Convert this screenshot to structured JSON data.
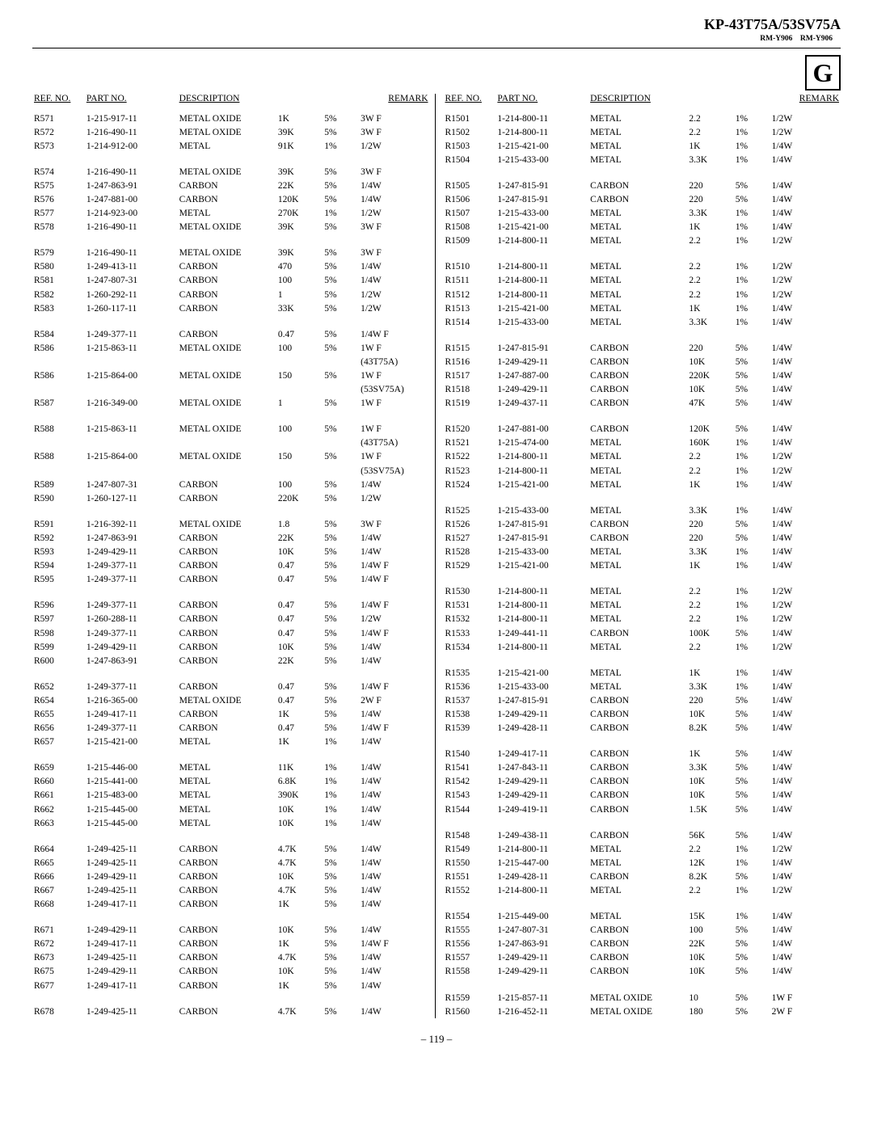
{
  "header": {
    "title": "KP-43T75A/53SV75A",
    "subtitle": "RM-Y906    RM-Y906",
    "letter": "G"
  },
  "colHeaders": [
    "REF. NO.",
    "PART NO.",
    "DESCRIPTION",
    "",
    "",
    "REMARK"
  ],
  "left": [
    [
      "R571",
      "1-215-917-11",
      "METAL OXIDE",
      "1K",
      "5%",
      "3W   F"
    ],
    [
      "R572",
      "1-216-490-11",
      "METAL OXIDE",
      "39K",
      "5%",
      "3W   F"
    ],
    [
      "R573",
      "1-214-912-00",
      "METAL",
      "91K",
      "1%",
      "1/2W"
    ],
    [],
    [
      "R574",
      "1-216-490-11",
      "METAL OXIDE",
      "39K",
      "5%",
      "3W   F"
    ],
    [
      "R575",
      "1-247-863-91",
      "CARBON",
      "22K",
      "5%",
      "1/4W"
    ],
    [
      "R576",
      "1-247-881-00",
      "CARBON",
      "120K",
      "5%",
      "1/4W"
    ],
    [
      "R577",
      "1-214-923-00",
      "METAL",
      "270K",
      "1%",
      "1/2W"
    ],
    [
      "R578",
      "1-216-490-11",
      "METAL OXIDE",
      "39K",
      "5%",
      "3W   F"
    ],
    [],
    [
      "R579",
      "1-216-490-11",
      "METAL OXIDE",
      "39K",
      "5%",
      "3W   F"
    ],
    [
      "R580",
      "1-249-413-11",
      "CARBON",
      "470",
      "5%",
      "1/4W"
    ],
    [
      "R581",
      "1-247-807-31",
      "CARBON",
      "100",
      "5%",
      "1/4W"
    ],
    [
      "R582",
      "1-260-292-11",
      "CARBON",
      "1",
      "5%",
      "1/2W"
    ],
    [
      "R583",
      "1-260-117-11",
      "CARBON",
      "33K",
      "5%",
      "1/2W"
    ],
    [],
    [
      "R584",
      "1-249-377-11",
      "CARBON",
      "0.47",
      "5%",
      "1/4W F"
    ],
    [
      "R586",
      "1-215-863-11",
      "METAL OXIDE",
      "100",
      "5%",
      "1W   F"
    ],
    [
      "",
      "",
      "",
      "",
      "",
      "(43T75A)"
    ],
    [
      "R586",
      "1-215-864-00",
      "METAL OXIDE",
      "150",
      "5%",
      "1W   F"
    ],
    [
      "",
      "",
      "",
      "",
      "",
      "(53SV75A)"
    ],
    [
      "R587",
      "1-216-349-00",
      "METAL OXIDE",
      "1",
      "5%",
      "1W   F"
    ],
    [],
    [
      "R588",
      "1-215-863-11",
      "METAL OXIDE",
      "100",
      "5%",
      "1W   F"
    ],
    [
      "",
      "",
      "",
      "",
      "",
      "(43T75A)"
    ],
    [
      "R588",
      "1-215-864-00",
      "METAL OXIDE",
      "150",
      "5%",
      "1W   F"
    ],
    [
      "",
      "",
      "",
      "",
      "",
      "(53SV75A)"
    ],
    [
      "R589",
      "1-247-807-31",
      "CARBON",
      "100",
      "5%",
      "1/4W"
    ],
    [
      "R590",
      "1-260-127-11",
      "CARBON",
      "220K",
      "5%",
      "1/2W"
    ],
    [],
    [
      "R591",
      "1-216-392-11",
      "METAL OXIDE",
      "1.8",
      "5%",
      "3W   F"
    ],
    [
      "R592",
      "1-247-863-91",
      "CARBON",
      "22K",
      "5%",
      "1/4W"
    ],
    [
      "R593",
      "1-249-429-11",
      "CARBON",
      "10K",
      "5%",
      "1/4W"
    ],
    [
      "R594",
      "1-249-377-11",
      "CARBON",
      "0.47",
      "5%",
      "1/4W F"
    ],
    [
      "R595",
      "1-249-377-11",
      "CARBON",
      "0.47",
      "5%",
      "1/4W F"
    ],
    [],
    [
      "R596",
      "1-249-377-11",
      "CARBON",
      "0.47",
      "5%",
      "1/4W F"
    ],
    [
      "R597",
      "1-260-288-11",
      "CARBON",
      "0.47",
      "5%",
      "1/2W"
    ],
    [
      "R598",
      "1-249-377-11",
      "CARBON",
      "0.47",
      "5%",
      "1/4W F"
    ],
    [
      "R599",
      "1-249-429-11",
      "CARBON",
      "10K",
      "5%",
      "1/4W"
    ],
    [
      "R600",
      "1-247-863-91",
      "CARBON",
      "22K",
      "5%",
      "1/4W"
    ],
    [],
    [
      "R652",
      "1-249-377-11",
      "CARBON",
      "0.47",
      "5%",
      "1/4W F"
    ],
    [
      "R654",
      "1-216-365-00",
      "METAL OXIDE",
      "0.47",
      "5%",
      "2W   F"
    ],
    [
      "R655",
      "1-249-417-11",
      "CARBON",
      "1K",
      "5%",
      "1/4W"
    ],
    [
      "R656",
      "1-249-377-11",
      "CARBON",
      "0.47",
      "5%",
      "1/4W F"
    ],
    [
      "R657",
      "1-215-421-00",
      "METAL",
      "1K",
      "1%",
      "1/4W"
    ],
    [],
    [
      "R659",
      "1-215-446-00",
      "METAL",
      "11K",
      "1%",
      "1/4W"
    ],
    [
      "R660",
      "1-215-441-00",
      "METAL",
      "6.8K",
      "1%",
      "1/4W"
    ],
    [
      "R661",
      "1-215-483-00",
      "METAL",
      "390K",
      "1%",
      "1/4W"
    ],
    [
      "R662",
      "1-215-445-00",
      "METAL",
      "10K",
      "1%",
      "1/4W"
    ],
    [
      "R663",
      "1-215-445-00",
      "METAL",
      "10K",
      "1%",
      "1/4W"
    ],
    [],
    [
      "R664",
      "1-249-425-11",
      "CARBON",
      "4.7K",
      "5%",
      "1/4W"
    ],
    [
      "R665",
      "1-249-425-11",
      "CARBON",
      "4.7K",
      "5%",
      "1/4W"
    ],
    [
      "R666",
      "1-249-429-11",
      "CARBON",
      "10K",
      "5%",
      "1/4W"
    ],
    [
      "R667",
      "1-249-425-11",
      "CARBON",
      "4.7K",
      "5%",
      "1/4W"
    ],
    [
      "R668",
      "1-249-417-11",
      "CARBON",
      "1K",
      "5%",
      "1/4W"
    ],
    [],
    [
      "R671",
      "1-249-429-11",
      "CARBON",
      "10K",
      "5%",
      "1/4W"
    ],
    [
      "R672",
      "1-249-417-11",
      "CARBON",
      "1K",
      "5%",
      "1/4W F"
    ],
    [
      "R673",
      "1-249-425-11",
      "CARBON",
      "4.7K",
      "5%",
      "1/4W"
    ],
    [
      "R675",
      "1-249-429-11",
      "CARBON",
      "10K",
      "5%",
      "1/4W"
    ],
    [
      "R677",
      "1-249-417-11",
      "CARBON",
      "1K",
      "5%",
      "1/4W"
    ],
    [],
    [
      "R678",
      "1-249-425-11",
      "CARBON",
      "4.7K",
      "5%",
      "1/4W"
    ]
  ],
  "right": [
    [
      "R1501",
      "1-214-800-11",
      "METAL",
      "2.2",
      "1%",
      "1/2W"
    ],
    [
      "R1502",
      "1-214-800-11",
      "METAL",
      "2.2",
      "1%",
      "1/2W"
    ],
    [
      "R1503",
      "1-215-421-00",
      "METAL",
      "1K",
      "1%",
      "1/4W"
    ],
    [
      "R1504",
      "1-215-433-00",
      "METAL",
      "3.3K",
      "1%",
      "1/4W"
    ],
    [],
    [
      "R1505",
      "1-247-815-91",
      "CARBON",
      "220",
      "5%",
      "1/4W"
    ],
    [
      "R1506",
      "1-247-815-91",
      "CARBON",
      "220",
      "5%",
      "1/4W"
    ],
    [
      "R1507",
      "1-215-433-00",
      "METAL",
      "3.3K",
      "1%",
      "1/4W"
    ],
    [
      "R1508",
      "1-215-421-00",
      "METAL",
      "1K",
      "1%",
      "1/4W"
    ],
    [
      "R1509",
      "1-214-800-11",
      "METAL",
      "2.2",
      "1%",
      "1/2W"
    ],
    [],
    [
      "R1510",
      "1-214-800-11",
      "METAL",
      "2.2",
      "1%",
      "1/2W"
    ],
    [
      "R1511",
      "1-214-800-11",
      "METAL",
      "2.2",
      "1%",
      "1/2W"
    ],
    [
      "R1512",
      "1-214-800-11",
      "METAL",
      "2.2",
      "1%",
      "1/2W"
    ],
    [
      "R1513",
      "1-215-421-00",
      "METAL",
      "1K",
      "1%",
      "1/4W"
    ],
    [
      "R1514",
      "1-215-433-00",
      "METAL",
      "3.3K",
      "1%",
      "1/4W"
    ],
    [],
    [
      "R1515",
      "1-247-815-91",
      "CARBON",
      "220",
      "5%",
      "1/4W"
    ],
    [
      "R1516",
      "1-249-429-11",
      "CARBON",
      "10K",
      "5%",
      "1/4W"
    ],
    [
      "R1517",
      "1-247-887-00",
      "CARBON",
      "220K",
      "5%",
      "1/4W"
    ],
    [
      "R1518",
      "1-249-429-11",
      "CARBON",
      "10K",
      "5%",
      "1/4W"
    ],
    [
      "R1519",
      "1-249-437-11",
      "CARBON",
      "47K",
      "5%",
      "1/4W"
    ],
    [],
    [
      "R1520",
      "1-247-881-00",
      "CARBON",
      "120K",
      "5%",
      "1/4W"
    ],
    [
      "R1521",
      "1-215-474-00",
      "METAL",
      "160K",
      "1%",
      "1/4W"
    ],
    [
      "R1522",
      "1-214-800-11",
      "METAL",
      "2.2",
      "1%",
      "1/2W"
    ],
    [
      "R1523",
      "1-214-800-11",
      "METAL",
      "2.2",
      "1%",
      "1/2W"
    ],
    [
      "R1524",
      "1-215-421-00",
      "METAL",
      "1K",
      "1%",
      "1/4W"
    ],
    [],
    [
      "R1525",
      "1-215-433-00",
      "METAL",
      "3.3K",
      "1%",
      "1/4W"
    ],
    [
      "R1526",
      "1-247-815-91",
      "CARBON",
      "220",
      "5%",
      "1/4W"
    ],
    [
      "R1527",
      "1-247-815-91",
      "CARBON",
      "220",
      "5%",
      "1/4W"
    ],
    [
      "R1528",
      "1-215-433-00",
      "METAL",
      "3.3K",
      "1%",
      "1/4W"
    ],
    [
      "R1529",
      "1-215-421-00",
      "METAL",
      "1K",
      "1%",
      "1/4W"
    ],
    [],
    [
      "R1530",
      "1-214-800-11",
      "METAL",
      "2.2",
      "1%",
      "1/2W"
    ],
    [
      "R1531",
      "1-214-800-11",
      "METAL",
      "2.2",
      "1%",
      "1/2W"
    ],
    [
      "R1532",
      "1-214-800-11",
      "METAL",
      "2.2",
      "1%",
      "1/2W"
    ],
    [
      "R1533",
      "1-249-441-11",
      "CARBON",
      "100K",
      "5%",
      "1/4W"
    ],
    [
      "R1534",
      "1-214-800-11",
      "METAL",
      "2.2",
      "1%",
      "1/2W"
    ],
    [],
    [
      "R1535",
      "1-215-421-00",
      "METAL",
      "1K",
      "1%",
      "1/4W"
    ],
    [
      "R1536",
      "1-215-433-00",
      "METAL",
      "3.3K",
      "1%",
      "1/4W"
    ],
    [
      "R1537",
      "1-247-815-91",
      "CARBON",
      "220",
      "5%",
      "1/4W"
    ],
    [
      "R1538",
      "1-249-429-11",
      "CARBON",
      "10K",
      "5%",
      "1/4W"
    ],
    [
      "R1539",
      "1-249-428-11",
      "CARBON",
      "8.2K",
      "5%",
      "1/4W"
    ],
    [],
    [
      "R1540",
      "1-249-417-11",
      "CARBON",
      "1K",
      "5%",
      "1/4W"
    ],
    [
      "R1541",
      "1-247-843-11",
      "CARBON",
      "3.3K",
      "5%",
      "1/4W"
    ],
    [
      "R1542",
      "1-249-429-11",
      "CARBON",
      "10K",
      "5%",
      "1/4W"
    ],
    [
      "R1543",
      "1-249-429-11",
      "CARBON",
      "10K",
      "5%",
      "1/4W"
    ],
    [
      "R1544",
      "1-249-419-11",
      "CARBON",
      "1.5K",
      "5%",
      "1/4W"
    ],
    [],
    [
      "R1548",
      "1-249-438-11",
      "CARBON",
      "56K",
      "5%",
      "1/4W"
    ],
    [
      "R1549",
      "1-214-800-11",
      "METAL",
      "2.2",
      "1%",
      "1/2W"
    ],
    [
      "R1550",
      "1-215-447-00",
      "METAL",
      "12K",
      "1%",
      "1/4W"
    ],
    [
      "R1551",
      "1-249-428-11",
      "CARBON",
      "8.2K",
      "5%",
      "1/4W"
    ],
    [
      "R1552",
      "1-214-800-11",
      "METAL",
      "2.2",
      "1%",
      "1/2W"
    ],
    [],
    [
      "R1554",
      "1-215-449-00",
      "METAL",
      "15K",
      "1%",
      "1/4W"
    ],
    [
      "R1555",
      "1-247-807-31",
      "CARBON",
      "100",
      "5%",
      "1/4W"
    ],
    [
      "R1556",
      "1-247-863-91",
      "CARBON",
      "22K",
      "5%",
      "1/4W"
    ],
    [
      "R1557",
      "1-249-429-11",
      "CARBON",
      "10K",
      "5%",
      "1/4W"
    ],
    [
      "R1558",
      "1-249-429-11",
      "CARBON",
      "10K",
      "5%",
      "1/4W"
    ],
    [],
    [
      "R1559",
      "1-215-857-11",
      "METAL OXIDE",
      "10",
      "5%",
      "1W   F"
    ],
    [
      "R1560",
      "1-216-452-11",
      "METAL OXIDE",
      "180",
      "5%",
      "2W   F"
    ]
  ],
  "pageNum": "– 119 –"
}
